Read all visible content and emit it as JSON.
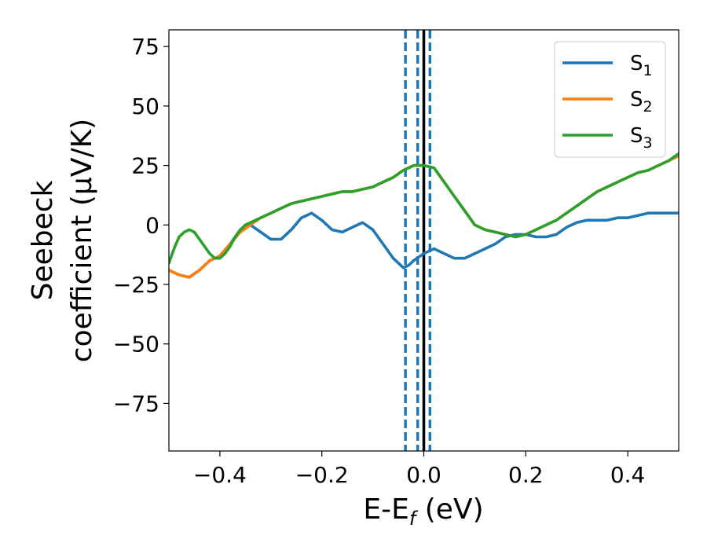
{
  "chart_data": {
    "type": "line",
    "xlabel_main": "E-E",
    "xlabel_sub": "f",
    "xlabel_unit": " (eV)",
    "ylabel_line1": "Seebeck",
    "ylabel_line2": "coefficient  (μV/K)",
    "xlim": [
      -0.5,
      0.5
    ],
    "ylim": [
      -95,
      82
    ],
    "xticks": [
      -0.4,
      -0.2,
      0.0,
      0.2,
      0.4
    ],
    "xtick_labels": [
      "−0.4",
      "−0.2",
      "0.0",
      "0.2",
      "0.4"
    ],
    "yticks": [
      75,
      50,
      25,
      0,
      -25,
      -50,
      -75
    ],
    "ytick_labels": [
      "75",
      "50",
      "25",
      "0",
      "−25",
      "−50",
      "−75"
    ],
    "grid": false,
    "legend_position": "top-right",
    "vlines": [
      {
        "x": 0.0,
        "style": "solid",
        "color": "#000000"
      },
      {
        "x": -0.036,
        "style": "dashed",
        "color": "#1f77b4"
      },
      {
        "x": -0.012,
        "style": "dashed",
        "color": "#1f77b4"
      },
      {
        "x": 0.012,
        "style": "dashed",
        "color": "#1f77b4"
      }
    ],
    "series": [
      {
        "name": "S",
        "subscript": "1",
        "color": "#1f77b4",
        "x": [
          -0.5,
          -0.48,
          -0.46,
          -0.44,
          -0.42,
          -0.4,
          -0.38,
          -0.36,
          -0.34,
          -0.32,
          -0.3,
          -0.28,
          -0.26,
          -0.24,
          -0.22,
          -0.2,
          -0.18,
          -0.16,
          -0.14,
          -0.12,
          -0.1,
          -0.08,
          -0.06,
          -0.04,
          -0.03,
          -0.02,
          0.0,
          0.02,
          0.04,
          0.06,
          0.08,
          0.1,
          0.12,
          0.14,
          0.16,
          0.18,
          0.2,
          0.22,
          0.24,
          0.26,
          0.28,
          0.3,
          0.32,
          0.34,
          0.36,
          0.38,
          0.4,
          0.42,
          0.44,
          0.46,
          0.48,
          0.5
        ],
        "y": [
          -19,
          -21,
          -22,
          -19,
          -15,
          -13,
          -8,
          -2,
          0,
          -3,
          -6,
          -6,
          -2,
          3,
          5,
          2,
          -2,
          -3,
          -1,
          1,
          -2,
          -8,
          -14,
          -18,
          -17,
          -15,
          -12,
          -10,
          -12,
          -14,
          -14,
          -12,
          -10,
          -8,
          -5,
          -4,
          -4,
          -5,
          -5,
          -4,
          -1,
          1,
          2,
          2,
          2,
          3,
          3,
          4,
          5,
          5,
          5,
          5
        ]
      },
      {
        "name": "S",
        "subscript": "2",
        "color": "#ff7f0e",
        "x": [
          -0.5,
          -0.48,
          -0.46,
          -0.44,
          -0.42,
          -0.4,
          -0.38,
          -0.36,
          -0.34,
          -0.32,
          -0.3,
          -0.28,
          -0.26,
          -0.24,
          -0.22,
          -0.2,
          -0.18,
          -0.16,
          -0.14,
          -0.12,
          -0.1,
          -0.08,
          -0.06,
          -0.04,
          -0.02,
          0.0,
          0.02,
          0.04,
          0.06,
          0.08,
          0.1,
          0.12,
          0.14,
          0.16,
          0.18,
          0.2,
          0.22,
          0.24,
          0.26,
          0.28,
          0.3,
          0.32,
          0.34,
          0.36,
          0.38,
          0.4,
          0.42,
          0.44,
          0.46,
          0.48,
          0.5
        ],
        "y": [
          -19,
          -21,
          -22,
          -19,
          -15,
          -13,
          -8,
          -3,
          0,
          3,
          5,
          7,
          9,
          10,
          11,
          12,
          13,
          14,
          14,
          15,
          16,
          18,
          20,
          23,
          25,
          25,
          24,
          18,
          12,
          6,
          0,
          -2,
          -3,
          -4,
          -5,
          -4,
          -2,
          0,
          2,
          5,
          8,
          11,
          14,
          16,
          18,
          20,
          22,
          23,
          25,
          27,
          29
        ]
      },
      {
        "name": "S",
        "subscript": "3",
        "color": "#2ca02c",
        "x": [
          -0.5,
          -0.49,
          -0.48,
          -0.47,
          -0.46,
          -0.45,
          -0.44,
          -0.43,
          -0.42,
          -0.41,
          -0.4,
          -0.39,
          -0.38,
          -0.37,
          -0.36,
          -0.35,
          -0.34,
          -0.32,
          -0.3,
          -0.28,
          -0.26,
          -0.24,
          -0.22,
          -0.2,
          -0.18,
          -0.16,
          -0.14,
          -0.12,
          -0.1,
          -0.08,
          -0.06,
          -0.04,
          -0.02,
          0.0,
          0.02,
          0.04,
          0.06,
          0.08,
          0.1,
          0.12,
          0.14,
          0.16,
          0.18,
          0.2,
          0.22,
          0.24,
          0.26,
          0.28,
          0.3,
          0.32,
          0.34,
          0.36,
          0.38,
          0.4,
          0.42,
          0.44,
          0.46,
          0.48,
          0.5
        ],
        "y": [
          -16,
          -10,
          -5,
          -3,
          -2,
          -3,
          -6,
          -9,
          -12,
          -14,
          -14,
          -12,
          -9,
          -5,
          -2,
          0,
          1,
          3,
          5,
          7,
          9,
          10,
          11,
          12,
          13,
          14,
          14,
          15,
          16,
          18,
          20,
          23,
          25,
          25,
          24,
          18,
          12,
          6,
          0,
          -2,
          -3,
          -4,
          -5,
          -4,
          -2,
          0,
          2,
          5,
          8,
          11,
          14,
          16,
          18,
          20,
          22,
          23,
          25,
          27,
          30
        ]
      }
    ]
  }
}
